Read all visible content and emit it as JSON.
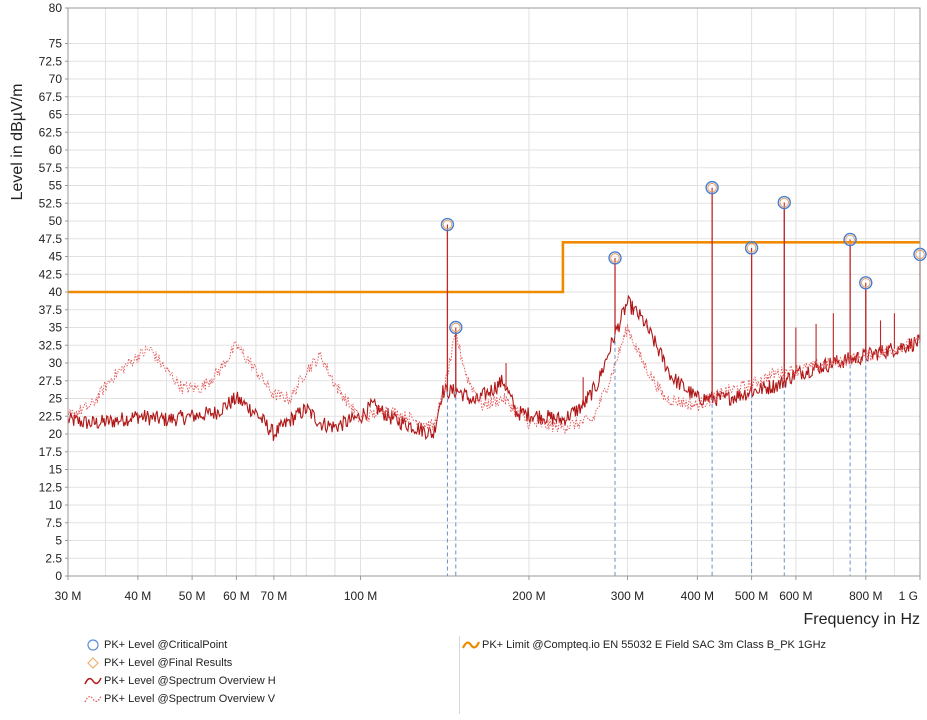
{
  "chart_data": {
    "type": "line",
    "xlabel": "Frequency in Hz",
    "ylabel": "Level in dBµV/m",
    "x_scale": "log",
    "xlim": [
      30000000,
      1000000000
    ],
    "ylim": [
      0,
      80
    ],
    "grid": true,
    "x_ticks": [
      {
        "value": 30000000,
        "label": "30 M"
      },
      {
        "value": 40000000,
        "label": "40 M"
      },
      {
        "value": 50000000,
        "label": "50 M"
      },
      {
        "value": 60000000,
        "label": "60 M"
      },
      {
        "value": 70000000,
        "label": "70 M"
      },
      {
        "value": 100000000,
        "label": "100 M"
      },
      {
        "value": 200000000,
        "label": "200 M"
      },
      {
        "value": 300000000,
        "label": "300 M"
      },
      {
        "value": 400000000,
        "label": "400 M"
      },
      {
        "value": 500000000,
        "label": "500 M"
      },
      {
        "value": 600000000,
        "label": "600 M"
      },
      {
        "value": 800000000,
        "label": "800 M"
      },
      {
        "value": 1000000000,
        "label": "1 G"
      }
    ],
    "y_ticks": [
      "0",
      "2.5",
      "5",
      "7.5",
      "10",
      "12.5",
      "15",
      "17.5",
      "20",
      "22.5",
      "25",
      "27.5",
      "30",
      "32.5",
      "35",
      "37.5",
      "40",
      "42.5",
      "45",
      "47.5",
      "50",
      "52.5",
      "55",
      "57.5",
      "60",
      "62.5",
      "65",
      "67.5",
      "70",
      "72.5",
      "75",
      "80"
    ],
    "limit_line": {
      "name": "PK+ Limit @Compteq.io EN 55032 E Field SAC 3m Class B_PK 1GHz",
      "color": "#f08a00",
      "points": [
        [
          30000000,
          40
        ],
        [
          230000000,
          40
        ],
        [
          230000000,
          47
        ],
        [
          1000000000,
          47
        ]
      ]
    },
    "critical_points": {
      "name": "PK+ Level @CriticalPoint",
      "color": "#5b8fd6",
      "points": [
        [
          143000000,
          49.5
        ],
        [
          148000000,
          35.0
        ],
        [
          285000000,
          44.8
        ],
        [
          425000000,
          54.7
        ],
        [
          500000000,
          46.2
        ],
        [
          572000000,
          52.6
        ],
        [
          750000000,
          47.4
        ],
        [
          800000000,
          41.3
        ],
        [
          1000000000,
          45.3
        ]
      ]
    },
    "final_results": {
      "name": "PK+ Level @Final Results",
      "color": "#f0b070",
      "points": []
    },
    "series": [
      {
        "name": "PK+ Level @Spectrum Overview H",
        "color": "#b01818",
        "style": "solid",
        "envelope": [
          [
            30000000,
            22.0
          ],
          [
            33000000,
            21.5
          ],
          [
            36000000,
            21.8
          ],
          [
            40000000,
            22.5
          ],
          [
            45000000,
            22.0
          ],
          [
            50000000,
            22.5
          ],
          [
            55000000,
            23.0
          ],
          [
            60000000,
            25.0
          ],
          [
            65000000,
            23.0
          ],
          [
            70000000,
            20.0
          ],
          [
            75000000,
            22.0
          ],
          [
            80000000,
            23.5
          ],
          [
            85000000,
            21.5
          ],
          [
            90000000,
            21.0
          ],
          [
            100000000,
            22.5
          ],
          [
            105000000,
            24.0
          ],
          [
            115000000,
            22.0
          ],
          [
            125000000,
            21.0
          ],
          [
            135000000,
            20.0
          ],
          [
            140000000,
            26.0
          ],
          [
            150000000,
            26.0
          ],
          [
            160000000,
            24.5
          ],
          [
            170000000,
            26.0
          ],
          [
            180000000,
            27.5
          ],
          [
            190000000,
            23.0
          ],
          [
            210000000,
            22.5
          ],
          [
            230000000,
            22.0
          ],
          [
            250000000,
            24.0
          ],
          [
            265000000,
            27.0
          ],
          [
            285000000,
            34.0
          ],
          [
            300000000,
            38.5
          ],
          [
            320000000,
            36.0
          ],
          [
            340000000,
            32.0
          ],
          [
            360000000,
            28.0
          ],
          [
            400000000,
            25.0
          ],
          [
            450000000,
            25.0
          ],
          [
            500000000,
            26.0
          ],
          [
            560000000,
            27.0
          ],
          [
            600000000,
            28.5
          ],
          [
            700000000,
            30.0
          ],
          [
            800000000,
            31.0
          ],
          [
            900000000,
            32.0
          ],
          [
            1000000000,
            33.0
          ]
        ]
      },
      {
        "name": "PK+ Level @Spectrum Overview V",
        "color": "#e35050",
        "style": "dotted",
        "envelope": [
          [
            30000000,
            22.5
          ],
          [
            33000000,
            24.0
          ],
          [
            36000000,
            28.0
          ],
          [
            40000000,
            31.0
          ],
          [
            42000000,
            32.0
          ],
          [
            45000000,
            29.0
          ],
          [
            48000000,
            26.5
          ],
          [
            52000000,
            26.5
          ],
          [
            56000000,
            29.0
          ],
          [
            60000000,
            32.5
          ],
          [
            65000000,
            29.0
          ],
          [
            70000000,
            25.5
          ],
          [
            75000000,
            25.0
          ],
          [
            80000000,
            29.0
          ],
          [
            85000000,
            31.0
          ],
          [
            90000000,
            27.0
          ],
          [
            100000000,
            22.0
          ],
          [
            110000000,
            23.5
          ],
          [
            125000000,
            22.0
          ],
          [
            135000000,
            21.0
          ],
          [
            140000000,
            25.0
          ],
          [
            148000000,
            34.0
          ],
          [
            155000000,
            28.0
          ],
          [
            165000000,
            24.0
          ],
          [
            180000000,
            25.0
          ],
          [
            200000000,
            21.5
          ],
          [
            230000000,
            21.0
          ],
          [
            260000000,
            22.0
          ],
          [
            280000000,
            28.0
          ],
          [
            300000000,
            35.0
          ],
          [
            320000000,
            30.0
          ],
          [
            350000000,
            25.0
          ],
          [
            400000000,
            24.0
          ],
          [
            450000000,
            26.0
          ],
          [
            500000000,
            27.0
          ],
          [
            550000000,
            28.5
          ],
          [
            600000000,
            29.0
          ],
          [
            700000000,
            30.0
          ],
          [
            800000000,
            31.0
          ],
          [
            900000000,
            32.0
          ],
          [
            1000000000,
            33.0
          ]
        ]
      }
    ],
    "spikes": [
      [
        143000000,
        49.5
      ],
      [
        148000000,
        35.0
      ],
      [
        285000000,
        44.8
      ],
      [
        425000000,
        54.7
      ],
      [
        500000000,
        46.2
      ],
      [
        572000000,
        52.6
      ],
      [
        750000000,
        47.4
      ],
      [
        800000000,
        41.3
      ],
      [
        1000000000,
        45.3
      ],
      [
        325000000,
        36.0
      ],
      [
        182000000,
        30.0
      ],
      [
        250000000,
        28.0
      ],
      [
        600000000,
        35.0
      ],
      [
        700000000,
        37.0
      ],
      [
        652000000,
        35.5
      ],
      [
        850000000,
        36.0
      ],
      [
        900000000,
        37.0
      ]
    ]
  },
  "legend": {
    "critical": "PK+ Level @CriticalPoint",
    "final": "PK+ Level @Final Results",
    "spec_h": "PK+ Level @Spectrum Overview H",
    "spec_v": "PK+ Level @Spectrum Overview V",
    "limit": "PK+ Limit @Compteq.io EN 55032 E Field SAC 3m Class B_PK 1GHz"
  }
}
